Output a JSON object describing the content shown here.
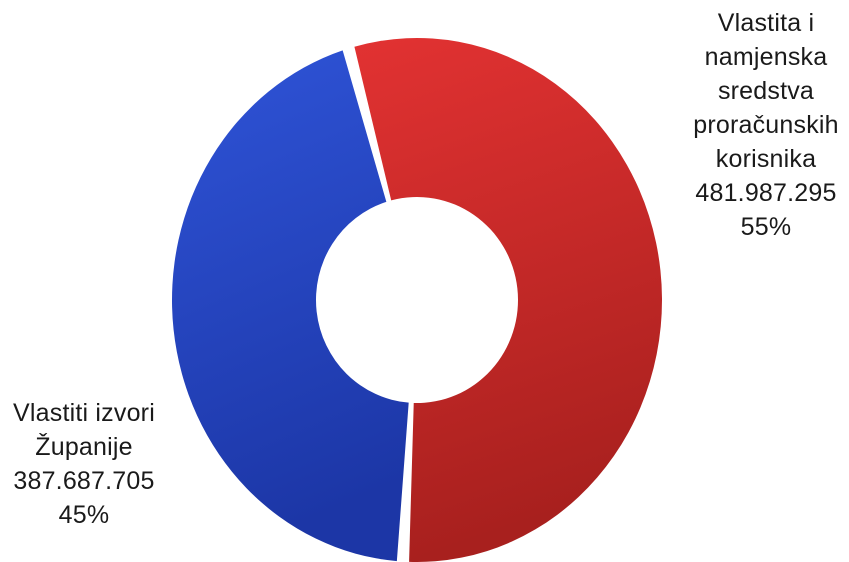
{
  "chart_data": {
    "type": "pie",
    "variant": "donut",
    "title": "",
    "slices": [
      {
        "label_lines": [
          "Vlastita i",
          "namjenska",
          "sredstva",
          "proračunskih",
          "korisnika"
        ],
        "value": 481987295,
        "value_text": "481.987.295",
        "percent": 55,
        "percent_text": "55%",
        "color": "#d42a2a"
      },
      {
        "label_lines": [
          "Vlastiti izvori",
          "Županije"
        ],
        "value": 387687705,
        "value_text": "387.687.705",
        "percent": 45,
        "percent_text": "45%",
        "color": "#2a49c2"
      }
    ],
    "colors": {
      "red_light": "#e23232",
      "red_dark": "#a8201e",
      "blue_light": "#2f54d8",
      "blue_dark": "#1c36a6"
    }
  }
}
